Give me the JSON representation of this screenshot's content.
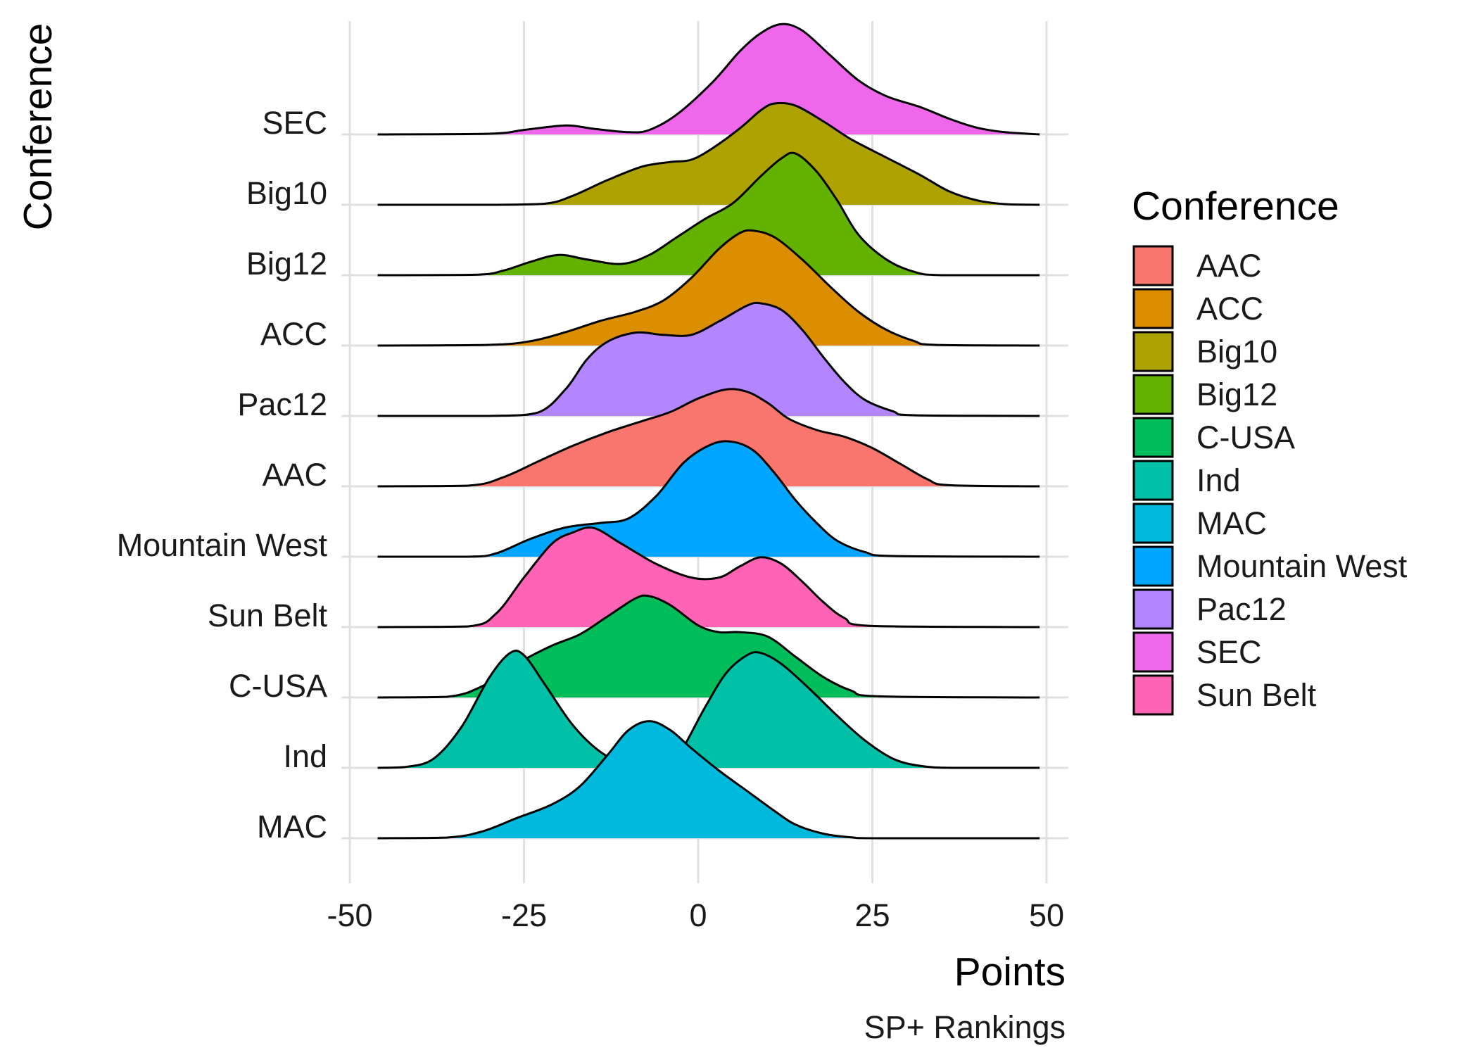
{
  "chart_data": {
    "type": "ridgeline",
    "xlabel": "Points",
    "ylabel": "Conference",
    "caption": "SP+ Rankings",
    "xlim": [
      -50,
      50
    ],
    "x_ticks": [
      -50,
      -25,
      0,
      25,
      50
    ],
    "x_tick_labels": [
      "-50",
      "-25",
      "0",
      "25",
      "50"
    ],
    "grid": true,
    "legend": {
      "title": "Conference",
      "placement": "right",
      "entries": [
        {
          "label": "AAC",
          "color": "#F8766D"
        },
        {
          "label": "ACC",
          "color": "#DB8E00"
        },
        {
          "label": "Big10",
          "color": "#AEA200"
        },
        {
          "label": "Big12",
          "color": "#64B200"
        },
        {
          "label": "C-USA",
          "color": "#00BD5C"
        },
        {
          "label": "Ind",
          "color": "#00C1A7"
        },
        {
          "label": "MAC",
          "color": "#00BADE"
        },
        {
          "label": "Mountain West",
          "color": "#00A6FF"
        },
        {
          "label": "Pac12",
          "color": "#B385FF"
        },
        {
          "label": "SEC",
          "color": "#EF67EB"
        },
        {
          "label": "Sun Belt",
          "color": "#FF63B6"
        }
      ]
    },
    "series": [
      {
        "name": "SEC",
        "color": "#EF67EB",
        "points": [
          [
            -46,
            0
          ],
          [
            -30,
            0.3
          ],
          [
            -25,
            2
          ],
          [
            -19,
            4
          ],
          [
            -15,
            2.5
          ],
          [
            -10,
            1
          ],
          [
            -7,
            2
          ],
          [
            -3,
            9
          ],
          [
            2,
            23
          ],
          [
            6,
            37
          ],
          [
            9,
            45
          ],
          [
            12,
            49
          ],
          [
            15,
            46
          ],
          [
            19,
            35
          ],
          [
            23,
            24
          ],
          [
            27,
            17
          ],
          [
            32,
            12
          ],
          [
            36,
            7
          ],
          [
            40,
            3
          ],
          [
            44,
            1
          ],
          [
            49,
            0
          ]
        ]
      },
      {
        "name": "Big10",
        "color": "#AEA200",
        "points": [
          [
            -46,
            0
          ],
          [
            -30,
            0
          ],
          [
            -22,
            0.5
          ],
          [
            -18,
            4
          ],
          [
            -13,
            11
          ],
          [
            -8,
            17
          ],
          [
            -4,
            19
          ],
          [
            -1,
            20
          ],
          [
            2,
            25
          ],
          [
            6,
            34
          ],
          [
            9,
            42
          ],
          [
            11,
            45
          ],
          [
            14,
            44
          ],
          [
            18,
            37
          ],
          [
            22,
            29
          ],
          [
            27,
            21
          ],
          [
            32,
            13
          ],
          [
            36,
            6
          ],
          [
            40,
            2
          ],
          [
            44,
            0.3
          ],
          [
            49,
            0
          ]
        ]
      },
      {
        "name": "Big12",
        "color": "#64B200",
        "points": [
          [
            -46,
            0
          ],
          [
            -32,
            0.2
          ],
          [
            -28,
            2
          ],
          [
            -24,
            6
          ],
          [
            -20,
            9
          ],
          [
            -16,
            7
          ],
          [
            -11,
            5
          ],
          [
            -7,
            9
          ],
          [
            -3,
            17
          ],
          [
            1,
            25
          ],
          [
            5,
            32
          ],
          [
            9,
            44
          ],
          [
            12,
            52
          ],
          [
            14,
            54
          ],
          [
            17,
            46
          ],
          [
            20,
            33
          ],
          [
            23,
            18
          ],
          [
            27,
            7
          ],
          [
            31,
            1.5
          ],
          [
            35,
            0
          ],
          [
            49,
            0
          ]
        ]
      },
      {
        "name": "ACC",
        "color": "#DB8E00",
        "points": [
          [
            -46,
            0
          ],
          [
            -30,
            0.3
          ],
          [
            -24,
            2
          ],
          [
            -19,
            6
          ],
          [
            -14,
            11
          ],
          [
            -9,
            15
          ],
          [
            -5,
            20
          ],
          [
            -1,
            30
          ],
          [
            3,
            43
          ],
          [
            6,
            50
          ],
          [
            8,
            51
          ],
          [
            11,
            48
          ],
          [
            15,
            38
          ],
          [
            19,
            26
          ],
          [
            23,
            15
          ],
          [
            27,
            7
          ],
          [
            31,
            2
          ],
          [
            34,
            0.3
          ],
          [
            49,
            0
          ]
        ]
      },
      {
        "name": "Pac12",
        "color": "#B385FF",
        "points": [
          [
            -46,
            0
          ],
          [
            -30,
            0
          ],
          [
            -23,
            1.5
          ],
          [
            -19,
            12
          ],
          [
            -16,
            25
          ],
          [
            -13,
            33
          ],
          [
            -9,
            37
          ],
          [
            -5,
            36
          ],
          [
            -1,
            36
          ],
          [
            3,
            42
          ],
          [
            7,
            49
          ],
          [
            9,
            50
          ],
          [
            12,
            47
          ],
          [
            15,
            38
          ],
          [
            18,
            26
          ],
          [
            21,
            15
          ],
          [
            24,
            7
          ],
          [
            28,
            2
          ],
          [
            31,
            0.3
          ],
          [
            49,
            0
          ]
        ]
      },
      {
        "name": "AAC",
        "color": "#F8766D",
        "points": [
          [
            -46,
            0
          ],
          [
            -33,
            0.3
          ],
          [
            -28,
            4
          ],
          [
            -23,
            11
          ],
          [
            -18,
            18
          ],
          [
            -13,
            24
          ],
          [
            -8,
            29
          ],
          [
            -4,
            33
          ],
          [
            0,
            39
          ],
          [
            4,
            43
          ],
          [
            7,
            42
          ],
          [
            10,
            37
          ],
          [
            13,
            30
          ],
          [
            17,
            25
          ],
          [
            21,
            22
          ],
          [
            25,
            17
          ],
          [
            29,
            10
          ],
          [
            33,
            3
          ],
          [
            36,
            0.5
          ],
          [
            49,
            0
          ]
        ]
      },
      {
        "name": "Mountain West",
        "color": "#00A6FF",
        "points": [
          [
            -46,
            0
          ],
          [
            -33,
            0
          ],
          [
            -29,
            1.5
          ],
          [
            -24,
            8
          ],
          [
            -19,
            13
          ],
          [
            -14,
            15
          ],
          [
            -10,
            17
          ],
          [
            -6,
            27
          ],
          [
            -2,
            42
          ],
          [
            2,
            50
          ],
          [
            5,
            51
          ],
          [
            8,
            47
          ],
          [
            11,
            37
          ],
          [
            14,
            25
          ],
          [
            17,
            15
          ],
          [
            20,
            7
          ],
          [
            24,
            2
          ],
          [
            28,
            0.3
          ],
          [
            49,
            0
          ]
        ]
      },
      {
        "name": "Sun Belt",
        "color": "#FF63B6",
        "points": [
          [
            -46,
            0
          ],
          [
            -33,
            0.3
          ],
          [
            -29,
            6
          ],
          [
            -25,
            22
          ],
          [
            -21,
            37
          ],
          [
            -18,
            42
          ],
          [
            -15,
            44
          ],
          [
            -11,
            37
          ],
          [
            -6,
            28
          ],
          [
            -1,
            22
          ],
          [
            3,
            22
          ],
          [
            6,
            27
          ],
          [
            9,
            31
          ],
          [
            12,
            28
          ],
          [
            15,
            20
          ],
          [
            18,
            11
          ],
          [
            21,
            4
          ],
          [
            25,
            0.5
          ],
          [
            49,
            0
          ]
        ]
      },
      {
        "name": "C-USA",
        "color": "#00BD5C",
        "points": [
          [
            -46,
            0
          ],
          [
            -36,
            0.3
          ],
          [
            -31,
            5
          ],
          [
            -26,
            15
          ],
          [
            -21,
            23
          ],
          [
            -17,
            28
          ],
          [
            -13,
            36
          ],
          [
            -9,
            44
          ],
          [
            -7,
            45
          ],
          [
            -4,
            41
          ],
          [
            0,
            32
          ],
          [
            3,
            29
          ],
          [
            6,
            29
          ],
          [
            10,
            27
          ],
          [
            14,
            18
          ],
          [
            18,
            9
          ],
          [
            22,
            3
          ],
          [
            26,
            0.5
          ],
          [
            49,
            0
          ]
        ]
      },
      {
        "name": "Ind",
        "color": "#00C1A7",
        "points": [
          [
            -46,
            0
          ],
          [
            -42,
            0.4
          ],
          [
            -38,
            4
          ],
          [
            -34,
            18
          ],
          [
            -30,
            40
          ],
          [
            -27,
            51
          ],
          [
            -25,
            50
          ],
          [
            -22,
            37
          ],
          [
            -18,
            19
          ],
          [
            -14,
            7
          ],
          [
            -10,
            1
          ],
          [
            -6,
            0
          ],
          [
            -3,
            5
          ],
          [
            1,
            27
          ],
          [
            4,
            42
          ],
          [
            7,
            50
          ],
          [
            9,
            51
          ],
          [
            12,
            46
          ],
          [
            16,
            35
          ],
          [
            20,
            23
          ],
          [
            24,
            12
          ],
          [
            28,
            4
          ],
          [
            32,
            0.8
          ],
          [
            37,
            0
          ],
          [
            49,
            0
          ]
        ]
      },
      {
        "name": "MAC",
        "color": "#00BADE",
        "points": [
          [
            -46,
            0
          ],
          [
            -36,
            0.3
          ],
          [
            -31,
            3
          ],
          [
            -26,
            9
          ],
          [
            -21,
            15
          ],
          [
            -17,
            23
          ],
          [
            -13,
            37
          ],
          [
            -10,
            48
          ],
          [
            -7,
            52
          ],
          [
            -4,
            48
          ],
          [
            -1,
            40
          ],
          [
            3,
            30
          ],
          [
            7,
            21
          ],
          [
            11,
            12
          ],
          [
            14,
            6
          ],
          [
            18,
            2
          ],
          [
            22,
            0.4
          ],
          [
            26,
            0
          ],
          [
            49,
            0
          ]
        ]
      }
    ]
  }
}
